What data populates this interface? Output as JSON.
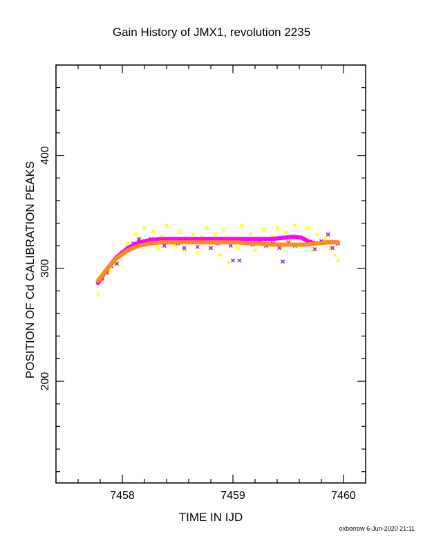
{
  "chart_data": {
    "type": "scatter",
    "title": "Gain History of JMX1, revolution 2235",
    "xlabel": "TIME IN IJD",
    "ylabel": "POSITION OF Cd CALIBRATION PEAKS",
    "xlim": [
      7457.4,
      7460.2
    ],
    "ylim": [
      110,
      480
    ],
    "x_ticks": [
      7458,
      7459,
      7460
    ],
    "y_ticks": [
      200,
      300,
      400
    ],
    "grid": false,
    "series": [
      {
        "color": "#ffff00",
        "marker": "x",
        "points": [
          [
            7457.78,
            277
          ],
          [
            7457.82,
            290
          ],
          [
            7457.88,
            297
          ],
          [
            7457.95,
            305
          ],
          [
            7458.02,
            314
          ],
          [
            7458.05,
            322
          ],
          [
            7458.09,
            318
          ],
          [
            7458.12,
            330
          ],
          [
            7458.16,
            326
          ],
          [
            7458.2,
            336
          ],
          [
            7458.24,
            322
          ],
          [
            7458.28,
            333
          ],
          [
            7458.32,
            318
          ],
          [
            7458.36,
            328
          ],
          [
            7458.4,
            338
          ],
          [
            7458.44,
            324
          ],
          [
            7458.48,
            320
          ],
          [
            7458.52,
            332
          ],
          [
            7458.56,
            316
          ],
          [
            7458.6,
            326
          ],
          [
            7458.64,
            330
          ],
          [
            7458.68,
            314
          ],
          [
            7458.72,
            328
          ],
          [
            7458.76,
            336
          ],
          [
            7458.8,
            322
          ],
          [
            7458.84,
            330
          ],
          [
            7458.88,
            312
          ],
          [
            7458.92,
            334
          ],
          [
            7458.96,
            305
          ],
          [
            7459.0,
            326
          ],
          [
            7459.04,
            318
          ],
          [
            7459.08,
            338
          ],
          [
            7459.12,
            322
          ],
          [
            7459.16,
            330
          ],
          [
            7459.2,
            316
          ],
          [
            7459.24,
            326
          ],
          [
            7459.28,
            334
          ],
          [
            7459.32,
            320
          ],
          [
            7459.36,
            328
          ],
          [
            7459.4,
            336
          ],
          [
            7459.44,
            318
          ],
          [
            7459.48,
            332
          ],
          [
            7459.52,
            324
          ],
          [
            7459.56,
            338
          ],
          [
            7459.6,
            320
          ],
          [
            7459.64,
            328
          ],
          [
            7459.68,
            336
          ],
          [
            7459.72,
            316
          ],
          [
            7459.76,
            330
          ],
          [
            7459.8,
            322
          ],
          [
            7459.84,
            326
          ],
          [
            7459.88,
            318
          ],
          [
            7459.92,
            312
          ],
          [
            7459.95,
            307
          ]
        ]
      },
      {
        "color": "#8a2be2",
        "marker": "x",
        "points": [
          [
            7457.78,
            288
          ],
          [
            7457.82,
            291
          ],
          [
            7457.86,
            296
          ],
          [
            7457.9,
            302
          ],
          [
            7457.95,
            304
          ],
          [
            7458.0,
            314
          ],
          [
            7458.05,
            318
          ],
          [
            7458.1,
            322
          ],
          [
            7458.15,
            326
          ],
          [
            7458.2,
            321
          ],
          [
            7458.26,
            326
          ],
          [
            7458.32,
            323
          ],
          [
            7458.38,
            320
          ],
          [
            7458.44,
            326
          ],
          [
            7458.5,
            322
          ],
          [
            7458.56,
            318
          ],
          [
            7458.62,
            324
          ],
          [
            7458.68,
            319
          ],
          [
            7458.74,
            323
          ],
          [
            7458.8,
            318
          ],
          [
            7458.86,
            322
          ],
          [
            7458.92,
            325
          ],
          [
            7458.98,
            320
          ],
          [
            7459.0,
            307
          ],
          [
            7459.06,
            307
          ],
          [
            7459.12,
            325
          ],
          [
            7459.18,
            321
          ],
          [
            7459.24,
            324
          ],
          [
            7459.3,
            320
          ],
          [
            7459.36,
            322
          ],
          [
            7459.42,
            318
          ],
          [
            7459.45,
            306
          ],
          [
            7459.5,
            323
          ],
          [
            7459.56,
            320
          ],
          [
            7459.62,
            321
          ],
          [
            7459.68,
            322
          ],
          [
            7459.74,
            317
          ],
          [
            7459.8,
            324
          ],
          [
            7459.86,
            330
          ],
          [
            7459.9,
            318
          ],
          [
            7459.95,
            322
          ]
        ]
      },
      {
        "color": "#ff00ff",
        "marker": "dense",
        "points": [
          [
            7457.78,
            287
          ],
          [
            7457.85,
            298
          ],
          [
            7457.95,
            310
          ],
          [
            7458.05,
            318
          ],
          [
            7458.15,
            323
          ],
          [
            7458.25,
            325
          ],
          [
            7458.35,
            326
          ],
          [
            7458.45,
            326
          ],
          [
            7458.55,
            326
          ],
          [
            7458.65,
            326
          ],
          [
            7458.75,
            326
          ],
          [
            7458.85,
            326
          ],
          [
            7458.95,
            326
          ],
          [
            7459.05,
            326
          ],
          [
            7459.15,
            326
          ],
          [
            7459.25,
            326
          ],
          [
            7459.35,
            326
          ],
          [
            7459.45,
            327
          ],
          [
            7459.55,
            328
          ],
          [
            7459.62,
            327
          ],
          [
            7459.68,
            324
          ],
          [
            7459.75,
            322
          ],
          [
            7459.85,
            323
          ],
          [
            7459.95,
            323
          ]
        ]
      },
      {
        "color": "#ff8c1a",
        "marker": "dense",
        "points": [
          [
            7457.78,
            289
          ],
          [
            7457.85,
            298
          ],
          [
            7457.95,
            309
          ],
          [
            7458.05,
            316
          ],
          [
            7458.15,
            320
          ],
          [
            7458.25,
            322
          ],
          [
            7458.35,
            323
          ],
          [
            7458.45,
            323
          ],
          [
            7458.55,
            323
          ],
          [
            7458.65,
            323
          ],
          [
            7458.75,
            323
          ],
          [
            7458.85,
            323
          ],
          [
            7458.95,
            323
          ],
          [
            7459.05,
            323
          ],
          [
            7459.15,
            322
          ],
          [
            7459.25,
            322
          ],
          [
            7459.35,
            321
          ],
          [
            7459.45,
            321
          ],
          [
            7459.55,
            321
          ],
          [
            7459.65,
            321
          ],
          [
            7459.75,
            322
          ],
          [
            7459.85,
            323
          ],
          [
            7459.95,
            323
          ]
        ]
      }
    ]
  },
  "footer": {
    "credit": "oxborrow  6-Jun-2020 21:11"
  }
}
